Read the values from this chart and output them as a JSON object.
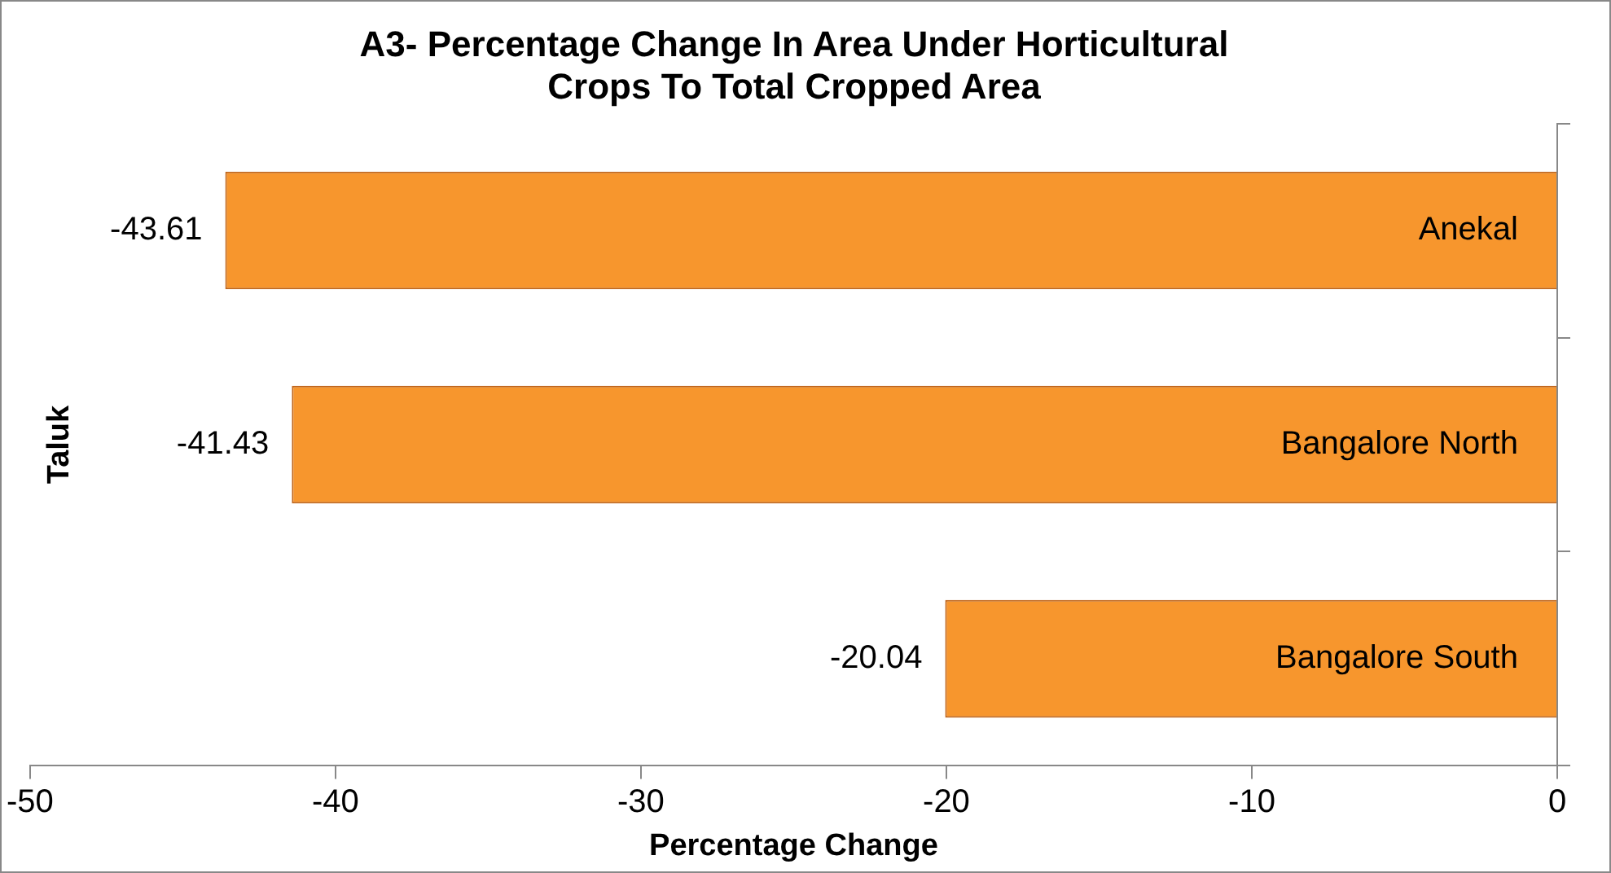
{
  "chart_data": {
    "type": "bar",
    "orientation": "horizontal",
    "title": "A3- Percentage Change In Area Under Horticultural Crops To Total Cropped Area",
    "xlabel": "Percentage Change",
    "ylabel": "Taluk",
    "categories": [
      "Anekal",
      "Bangalore North",
      "Bangalore South"
    ],
    "values": [
      -43.61,
      -41.43,
      -20.04
    ],
    "color": "#f7962d",
    "data_labels": true,
    "xlim": [
      -50,
      0
    ],
    "xticks": [
      -50,
      -40,
      -30,
      -20,
      -10,
      0
    ],
    "legend": false
  }
}
